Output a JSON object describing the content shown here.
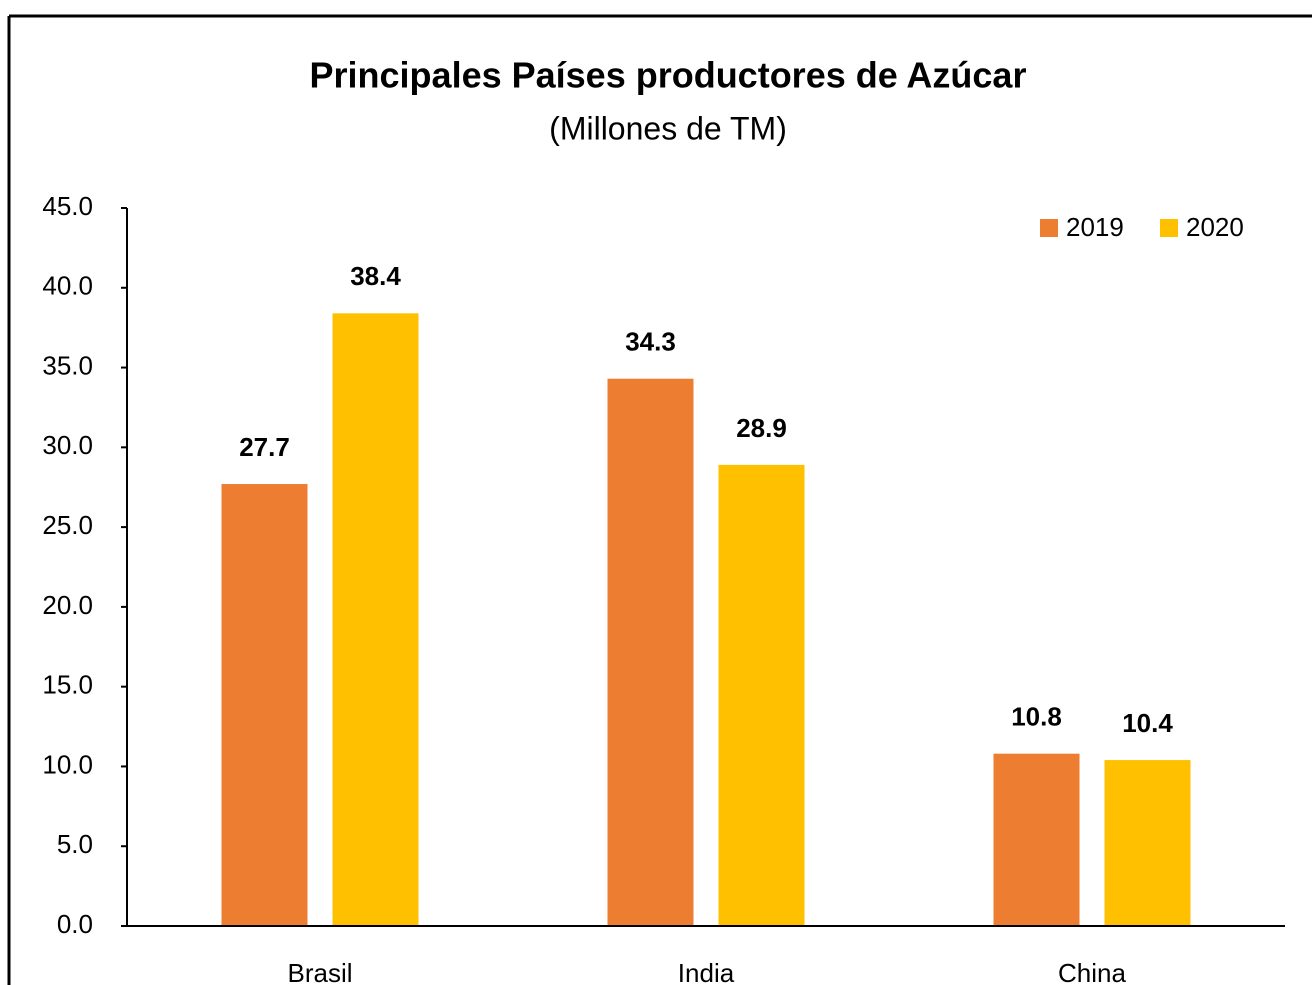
{
  "chart_data": {
    "type": "bar",
    "title": "Principales Países productores de Azúcar",
    "subtitle": "(Millones de TM)",
    "categories": [
      "Brasil",
      "India",
      "China"
    ],
    "series": [
      {
        "name": "2019",
        "color": "#ed7d31",
        "values": [
          27.7,
          34.3,
          10.8
        ]
      },
      {
        "name": "2020",
        "color": "#ffc000",
        "values": [
          38.4,
          28.9,
          10.4
        ]
      }
    ],
    "ylim": [
      0,
      45
    ],
    "yticks": [
      {
        "value": 0,
        "label": "0.0"
      },
      {
        "value": 5,
        "label": "5.0"
      },
      {
        "value": 10,
        "label": "10.0"
      },
      {
        "value": 15,
        "label": "15.0"
      },
      {
        "value": 20,
        "label": "20.0"
      },
      {
        "value": 25,
        "label": "25.0"
      },
      {
        "value": 30,
        "label": "30.0"
      },
      {
        "value": 35,
        "label": "35.0"
      },
      {
        "value": 40,
        "label": "40.0"
      },
      {
        "value": 45,
        "label": "45.0"
      }
    ],
    "legend": "top-right",
    "grid": false
  }
}
